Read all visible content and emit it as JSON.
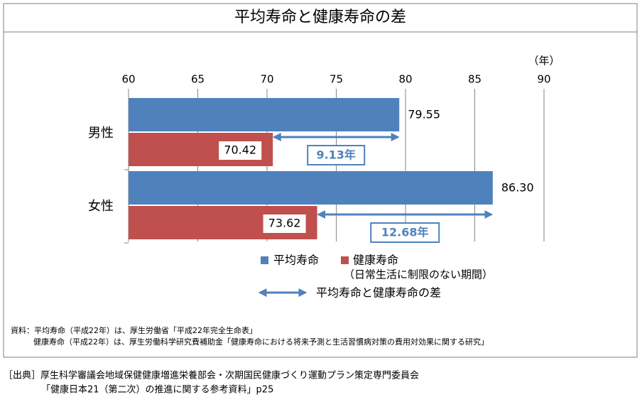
{
  "chart_data": {
    "type": "hbar",
    "title": "平均寿命と健康寿命の差",
    "categories": [
      "男性",
      "女性"
    ],
    "series": [
      {
        "name": "平均寿命",
        "color": "#4f81bd",
        "values": [
          79.55,
          86.3
        ],
        "value_labels": [
          "79.55",
          "86.30"
        ]
      },
      {
        "name": "健康寿命",
        "color": "#c0504d",
        "values": [
          70.42,
          73.62
        ],
        "value_labels": [
          "70.42",
          "73.62"
        ]
      }
    ],
    "legend_note": "（日常生活に制限のない期間）",
    "difference": {
      "name": "平均寿命と健康寿命の差",
      "color": "#4f81bd",
      "values": [
        9.13,
        12.68
      ],
      "value_labels": [
        "9.13年",
        "12.68年"
      ]
    },
    "x_unit_label": "（年）",
    "xlim": [
      60,
      90
    ],
    "xticks": [
      60,
      65,
      70,
      75,
      80,
      85,
      90
    ],
    "grid": true,
    "notes": [
      "資料：平均寿命（平成22年）は、厚生労働省「平成22年完全生命表」",
      "健康寿命（平成22年）は、厚生労働科学研究費補助金「健康寿命における将来予測と生活習慣病対策の費用対効果に関する研究」"
    ],
    "source": [
      "［出典］厚生科学審議会地域保健健康増進栄養部会・次期国民健康づくり運動プラン策定専門委員会",
      "「健康日本21（第二次）の推進に関する参考資料」p25"
    ]
  }
}
